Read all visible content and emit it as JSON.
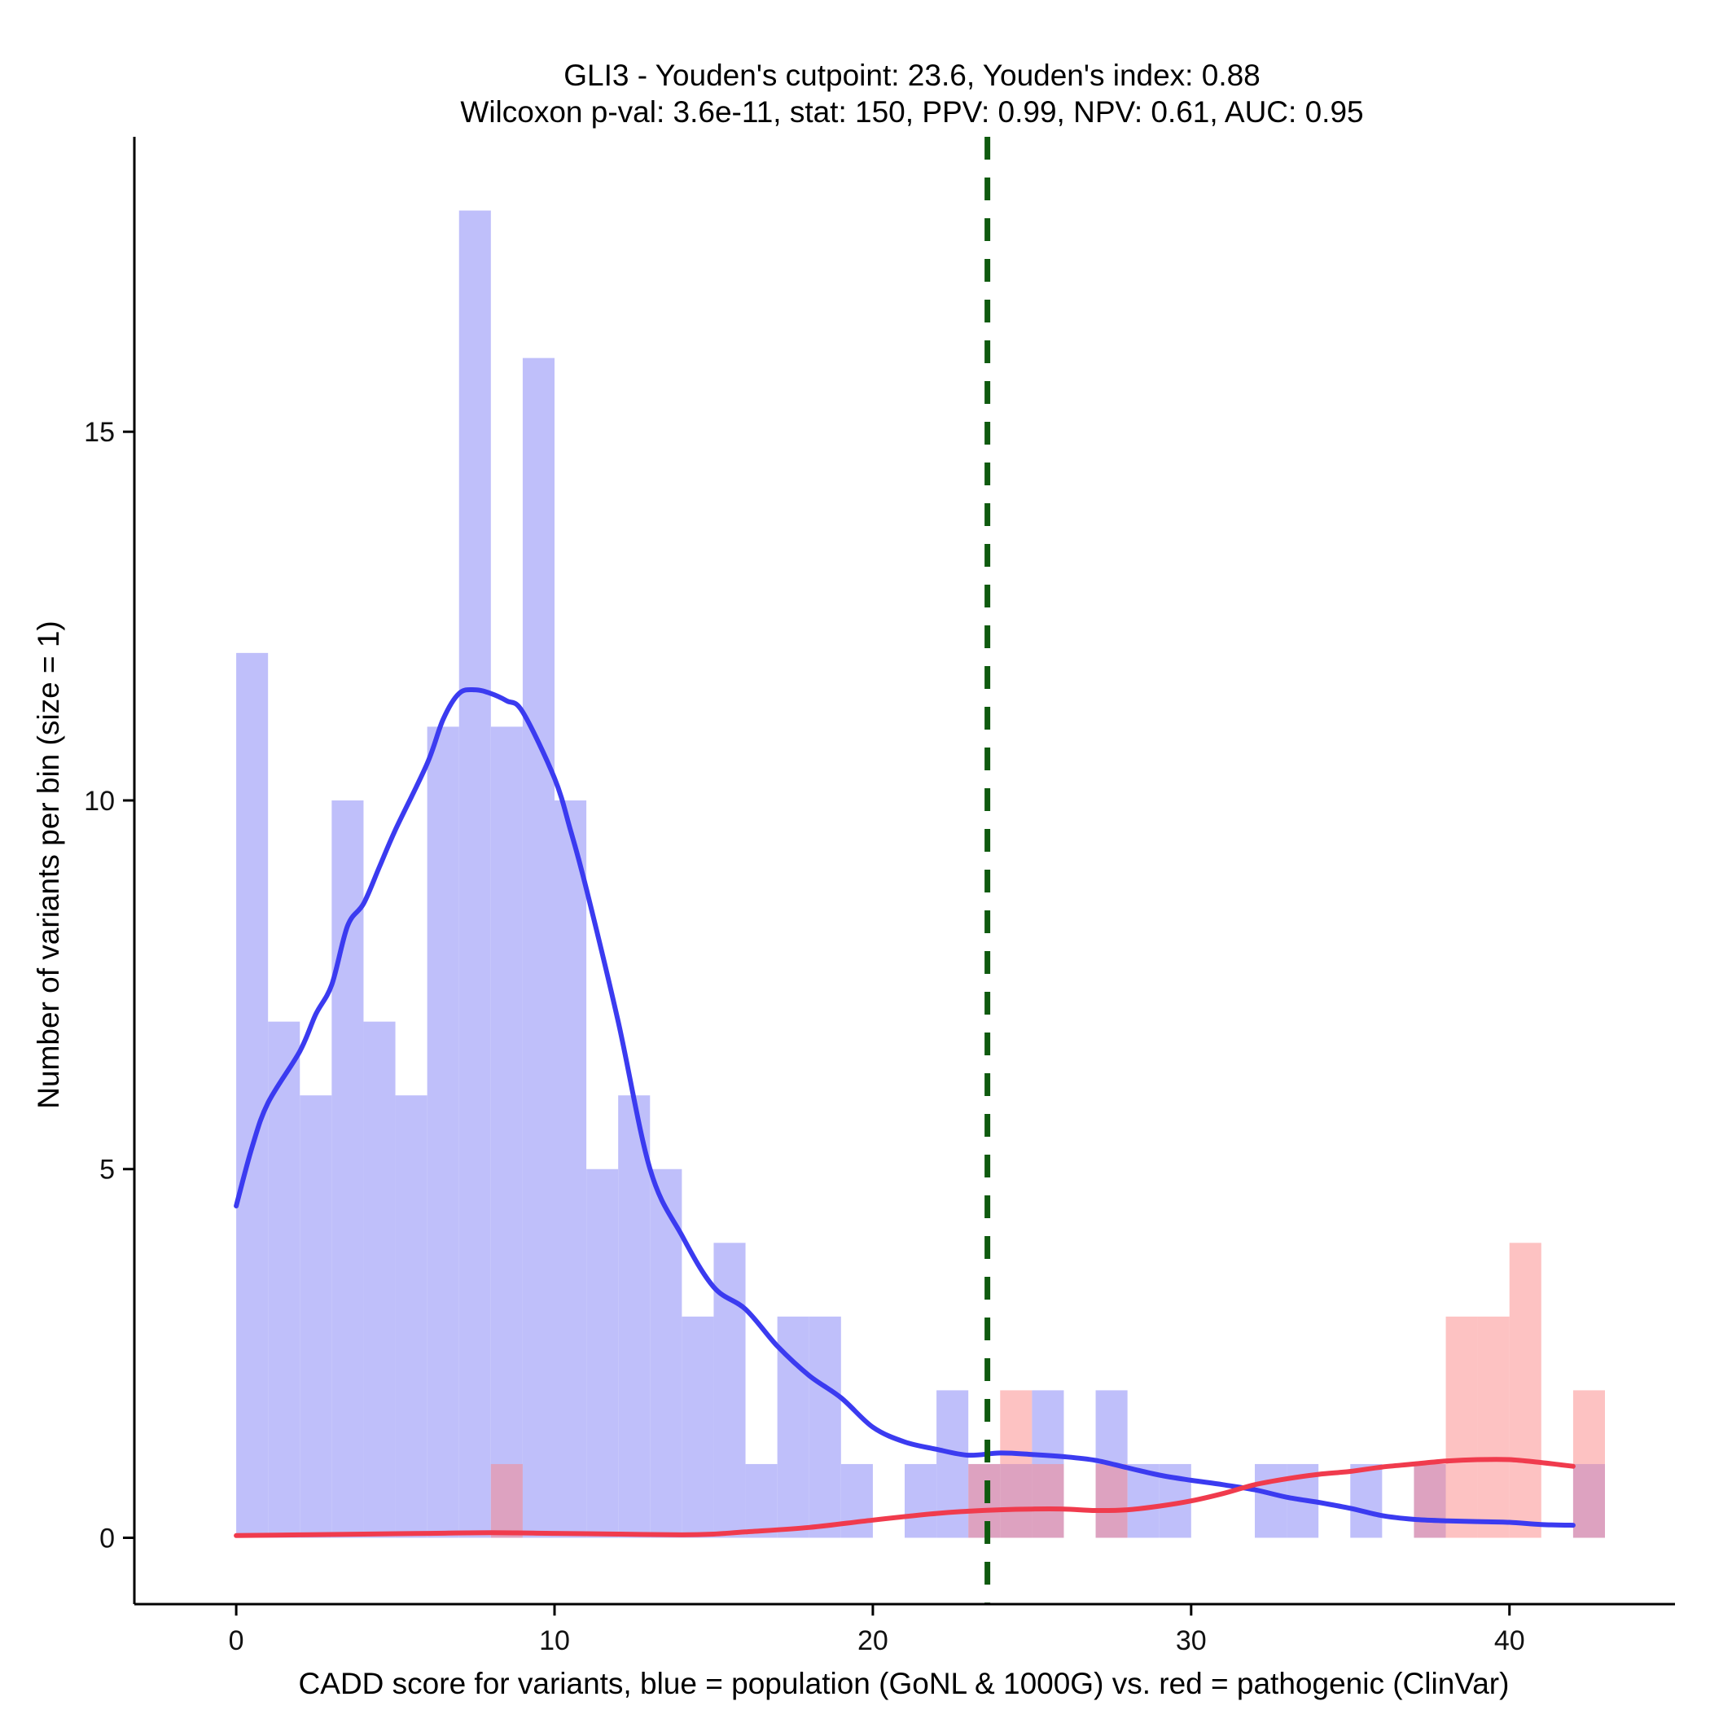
{
  "chart_data": {
    "type": "histogram",
    "title_line1": "GLI3 - Youden's cutpoint: 23.6, Youden's index: 0.88",
    "title_line2": "Wilcoxon p-val: 3.6e-11, stat: 150, PPV: 0.99, NPV: 0.61, AUC: 0.95",
    "xlabel": "CADD score for variants, blue = population (GoNL & 1000G) vs. red = pathogenic (ClinVar)",
    "ylabel": "Number of variants per bin (size = 1)",
    "xlim": [
      -3.2,
      45.2
    ],
    "ylim": [
      -0.9,
      19
    ],
    "x_ticks": [
      0,
      10,
      20,
      30,
      40
    ],
    "y_ticks": [
      0,
      5,
      10,
      15
    ],
    "bin_width": 1,
    "cutpoint": 23.6,
    "colors": {
      "population_bar": "#bfbffa",
      "pathogenic_bar": "#fb8585",
      "population_line": "#3b3bf0",
      "pathogenic_line": "#f03b4d",
      "cutpoint_line": "#0f5a0f"
    },
    "series": [
      {
        "name": "population (GoNL & 1000G)",
        "bins": [
          {
            "x": 0,
            "count": 12
          },
          {
            "x": 1,
            "count": 7
          },
          {
            "x": 2,
            "count": 6
          },
          {
            "x": 3,
            "count": 10
          },
          {
            "x": 4,
            "count": 7
          },
          {
            "x": 5,
            "count": 6
          },
          {
            "x": 6,
            "count": 11
          },
          {
            "x": 7,
            "count": 18
          },
          {
            "x": 8,
            "count": 11
          },
          {
            "x": 9,
            "count": 16
          },
          {
            "x": 10,
            "count": 10
          },
          {
            "x": 11,
            "count": 5
          },
          {
            "x": 12,
            "count": 6
          },
          {
            "x": 13,
            "count": 5
          },
          {
            "x": 14,
            "count": 3
          },
          {
            "x": 15,
            "count": 4
          },
          {
            "x": 16,
            "count": 1
          },
          {
            "x": 17,
            "count": 3
          },
          {
            "x": 18,
            "count": 3
          },
          {
            "x": 19,
            "count": 1
          },
          {
            "x": 21,
            "count": 1
          },
          {
            "x": 22,
            "count": 2
          },
          {
            "x": 23,
            "count": 1
          },
          {
            "x": 24,
            "count": 1
          },
          {
            "x": 25,
            "count": 2
          },
          {
            "x": 27,
            "count": 2
          },
          {
            "x": 28,
            "count": 1
          },
          {
            "x": 29,
            "count": 1
          },
          {
            "x": 32,
            "count": 1
          },
          {
            "x": 33,
            "count": 1
          },
          {
            "x": 35,
            "count": 1
          },
          {
            "x": 37,
            "count": 1
          },
          {
            "x": 42,
            "count": 1
          }
        ]
      },
      {
        "name": "pathogenic (ClinVar)",
        "bins": [
          {
            "x": 8,
            "count": 1
          },
          {
            "x": 23,
            "count": 1
          },
          {
            "x": 24,
            "count": 2
          },
          {
            "x": 25,
            "count": 1
          },
          {
            "x": 27,
            "count": 1
          },
          {
            "x": 37,
            "count": 1
          },
          {
            "x": 38,
            "count": 3
          },
          {
            "x": 39,
            "count": 3
          },
          {
            "x": 40,
            "count": 4
          },
          {
            "x": 42,
            "count": 2
          }
        ]
      }
    ],
    "density": [
      {
        "name": "population (GoNL & 1000G)",
        "points": [
          [
            0,
            4.5
          ],
          [
            0.5,
            5.3
          ],
          [
            1,
            5.9
          ],
          [
            2,
            6.6
          ],
          [
            2.5,
            7.1
          ],
          [
            3,
            7.5
          ],
          [
            3.5,
            8.3
          ],
          [
            4,
            8.6
          ],
          [
            4.5,
            9.1
          ],
          [
            5,
            9.6
          ],
          [
            6,
            10.5
          ],
          [
            6.5,
            11.1
          ],
          [
            7,
            11.45
          ],
          [
            7.5,
            11.5
          ],
          [
            8,
            11.45
          ],
          [
            8.5,
            11.35
          ],
          [
            9,
            11.2
          ],
          [
            10,
            10.3
          ],
          [
            10.5,
            9.6
          ],
          [
            11,
            8.8
          ],
          [
            12,
            7.0
          ],
          [
            13,
            5.0
          ],
          [
            14,
            4.1
          ],
          [
            15,
            3.4
          ],
          [
            16,
            3.1
          ],
          [
            17,
            2.6
          ],
          [
            18,
            2.2
          ],
          [
            19,
            1.9
          ],
          [
            20,
            1.5
          ],
          [
            21,
            1.3
          ],
          [
            22,
            1.2
          ],
          [
            23,
            1.12
          ],
          [
            24,
            1.15
          ],
          [
            25,
            1.13
          ],
          [
            26,
            1.1
          ],
          [
            27,
            1.05
          ],
          [
            28,
            0.95
          ],
          [
            29,
            0.85
          ],
          [
            30,
            0.78
          ],
          [
            31,
            0.72
          ],
          [
            32,
            0.65
          ],
          [
            33,
            0.55
          ],
          [
            34,
            0.48
          ],
          [
            35,
            0.4
          ],
          [
            36,
            0.3
          ],
          [
            37,
            0.25
          ],
          [
            38,
            0.23
          ],
          [
            39,
            0.22
          ],
          [
            40,
            0.21
          ],
          [
            41,
            0.18
          ],
          [
            42,
            0.17
          ]
        ]
      },
      {
        "name": "pathogenic (ClinVar)",
        "points": [
          [
            0,
            0.03
          ],
          [
            2,
            0.04
          ],
          [
            4,
            0.05
          ],
          [
            6,
            0.06
          ],
          [
            8,
            0.07
          ],
          [
            10,
            0.06
          ],
          [
            12,
            0.05
          ],
          [
            14,
            0.04
          ],
          [
            15,
            0.05
          ],
          [
            16,
            0.08
          ],
          [
            18,
            0.14
          ],
          [
            20,
            0.24
          ],
          [
            22,
            0.33
          ],
          [
            23,
            0.36
          ],
          [
            24,
            0.38
          ],
          [
            25,
            0.39
          ],
          [
            26,
            0.39
          ],
          [
            27,
            0.37
          ],
          [
            28,
            0.38
          ],
          [
            29,
            0.43
          ],
          [
            30,
            0.5
          ],
          [
            31,
            0.6
          ],
          [
            32,
            0.72
          ],
          [
            33,
            0.8
          ],
          [
            34,
            0.86
          ],
          [
            35,
            0.9
          ],
          [
            36,
            0.96
          ],
          [
            37,
            1.0
          ],
          [
            38,
            1.04
          ],
          [
            39,
            1.06
          ],
          [
            40,
            1.06
          ],
          [
            41,
            1.02
          ],
          [
            42,
            0.97
          ]
        ]
      }
    ]
  }
}
